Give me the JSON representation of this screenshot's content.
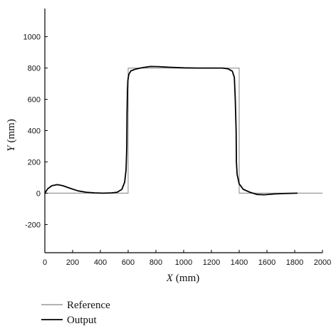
{
  "chart_data": {
    "type": "line",
    "title": "",
    "xlabel_var": "X",
    "xlabel_unit": "(mm)",
    "ylabel_var": "Y",
    "ylabel_unit": "(mm)",
    "xlim": [
      0,
      2000
    ],
    "ylim": [
      -380,
      1180
    ],
    "x_ticks": [
      0,
      200,
      400,
      600,
      800,
      1000,
      1200,
      1400,
      1600,
      1800,
      2000
    ],
    "y_ticks": [
      -200,
      0,
      200,
      400,
      600,
      800,
      1000
    ],
    "grid": false,
    "legend_position": "bottom-left",
    "series": [
      {
        "name": "Reference",
        "color": "#999999",
        "points": [
          [
            0,
            0
          ],
          [
            600,
            0
          ],
          [
            600,
            800
          ],
          [
            1400,
            800
          ],
          [
            1400,
            0
          ],
          [
            2000,
            0
          ]
        ]
      },
      {
        "name": "Output",
        "color": "#000000",
        "points": [
          [
            0,
            0
          ],
          [
            20,
            28
          ],
          [
            50,
            48
          ],
          [
            90,
            55
          ],
          [
            130,
            48
          ],
          [
            180,
            32
          ],
          [
            240,
            15
          ],
          [
            300,
            6
          ],
          [
            360,
            2
          ],
          [
            420,
            0
          ],
          [
            480,
            2
          ],
          [
            520,
            6
          ],
          [
            555,
            25
          ],
          [
            575,
            70
          ],
          [
            585,
            150
          ],
          [
            590,
            300
          ],
          [
            592,
            500
          ],
          [
            595,
            650
          ],
          [
            598,
            720
          ],
          [
            605,
            760
          ],
          [
            620,
            782
          ],
          [
            650,
            792
          ],
          [
            700,
            802
          ],
          [
            760,
            810
          ],
          [
            820,
            809
          ],
          [
            900,
            805
          ],
          [
            1000,
            801
          ],
          [
            1100,
            800
          ],
          [
            1200,
            800
          ],
          [
            1280,
            800
          ],
          [
            1320,
            795
          ],
          [
            1350,
            780
          ],
          [
            1365,
            740
          ],
          [
            1372,
            600
          ],
          [
            1378,
            400
          ],
          [
            1380,
            200
          ],
          [
            1385,
            120
          ],
          [
            1400,
            60
          ],
          [
            1430,
            25
          ],
          [
            1480,
            5
          ],
          [
            1530,
            -8
          ],
          [
            1580,
            -10
          ],
          [
            1650,
            -5
          ],
          [
            1720,
            -2
          ],
          [
            1820,
            0
          ]
        ]
      }
    ]
  }
}
